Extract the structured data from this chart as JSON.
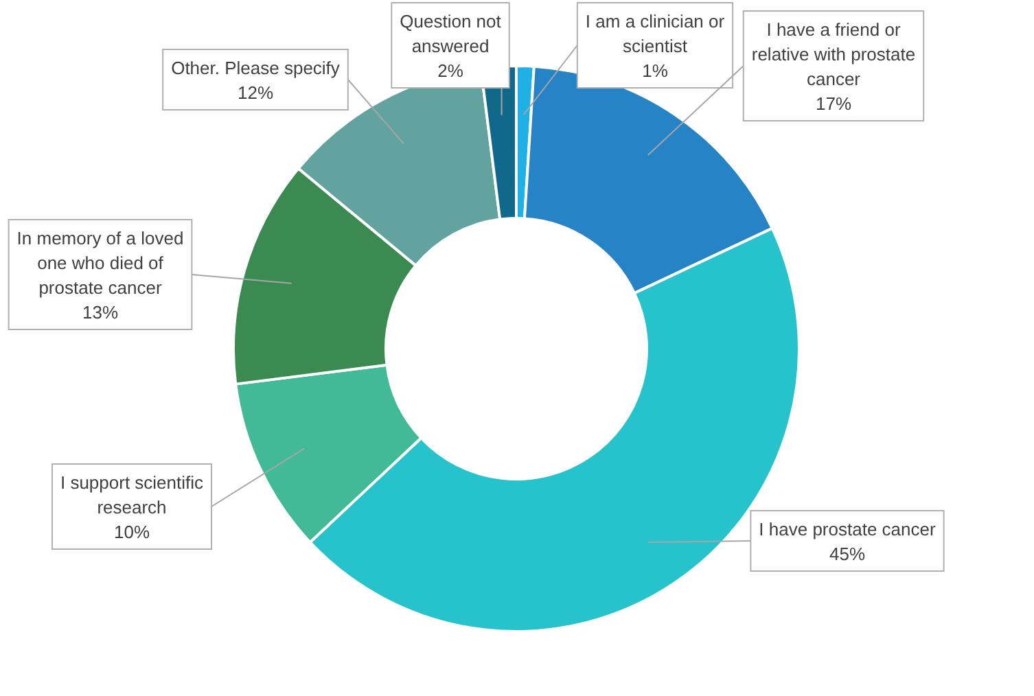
{
  "chart_data": {
    "type": "donut",
    "categories": [
      "I am a clinician or scientist",
      "I have a friend or relative with prostate cancer",
      "I have prostate cancer",
      "I support scientific research",
      "In memory of a loved one who died of prostate cancer",
      "Other. Please specify",
      "Question not answered"
    ],
    "values": [
      1,
      17,
      45,
      10,
      13,
      12,
      2
    ],
    "value_labels": [
      "1%",
      "17%",
      "45%",
      "10%",
      "13%",
      "12%",
      "2%"
    ],
    "colors": [
      "#1fb0e6",
      "#2683c6",
      "#27c3cc",
      "#42ba97",
      "#3b8a52",
      "#62a39f",
      "#10698a"
    ]
  }
}
